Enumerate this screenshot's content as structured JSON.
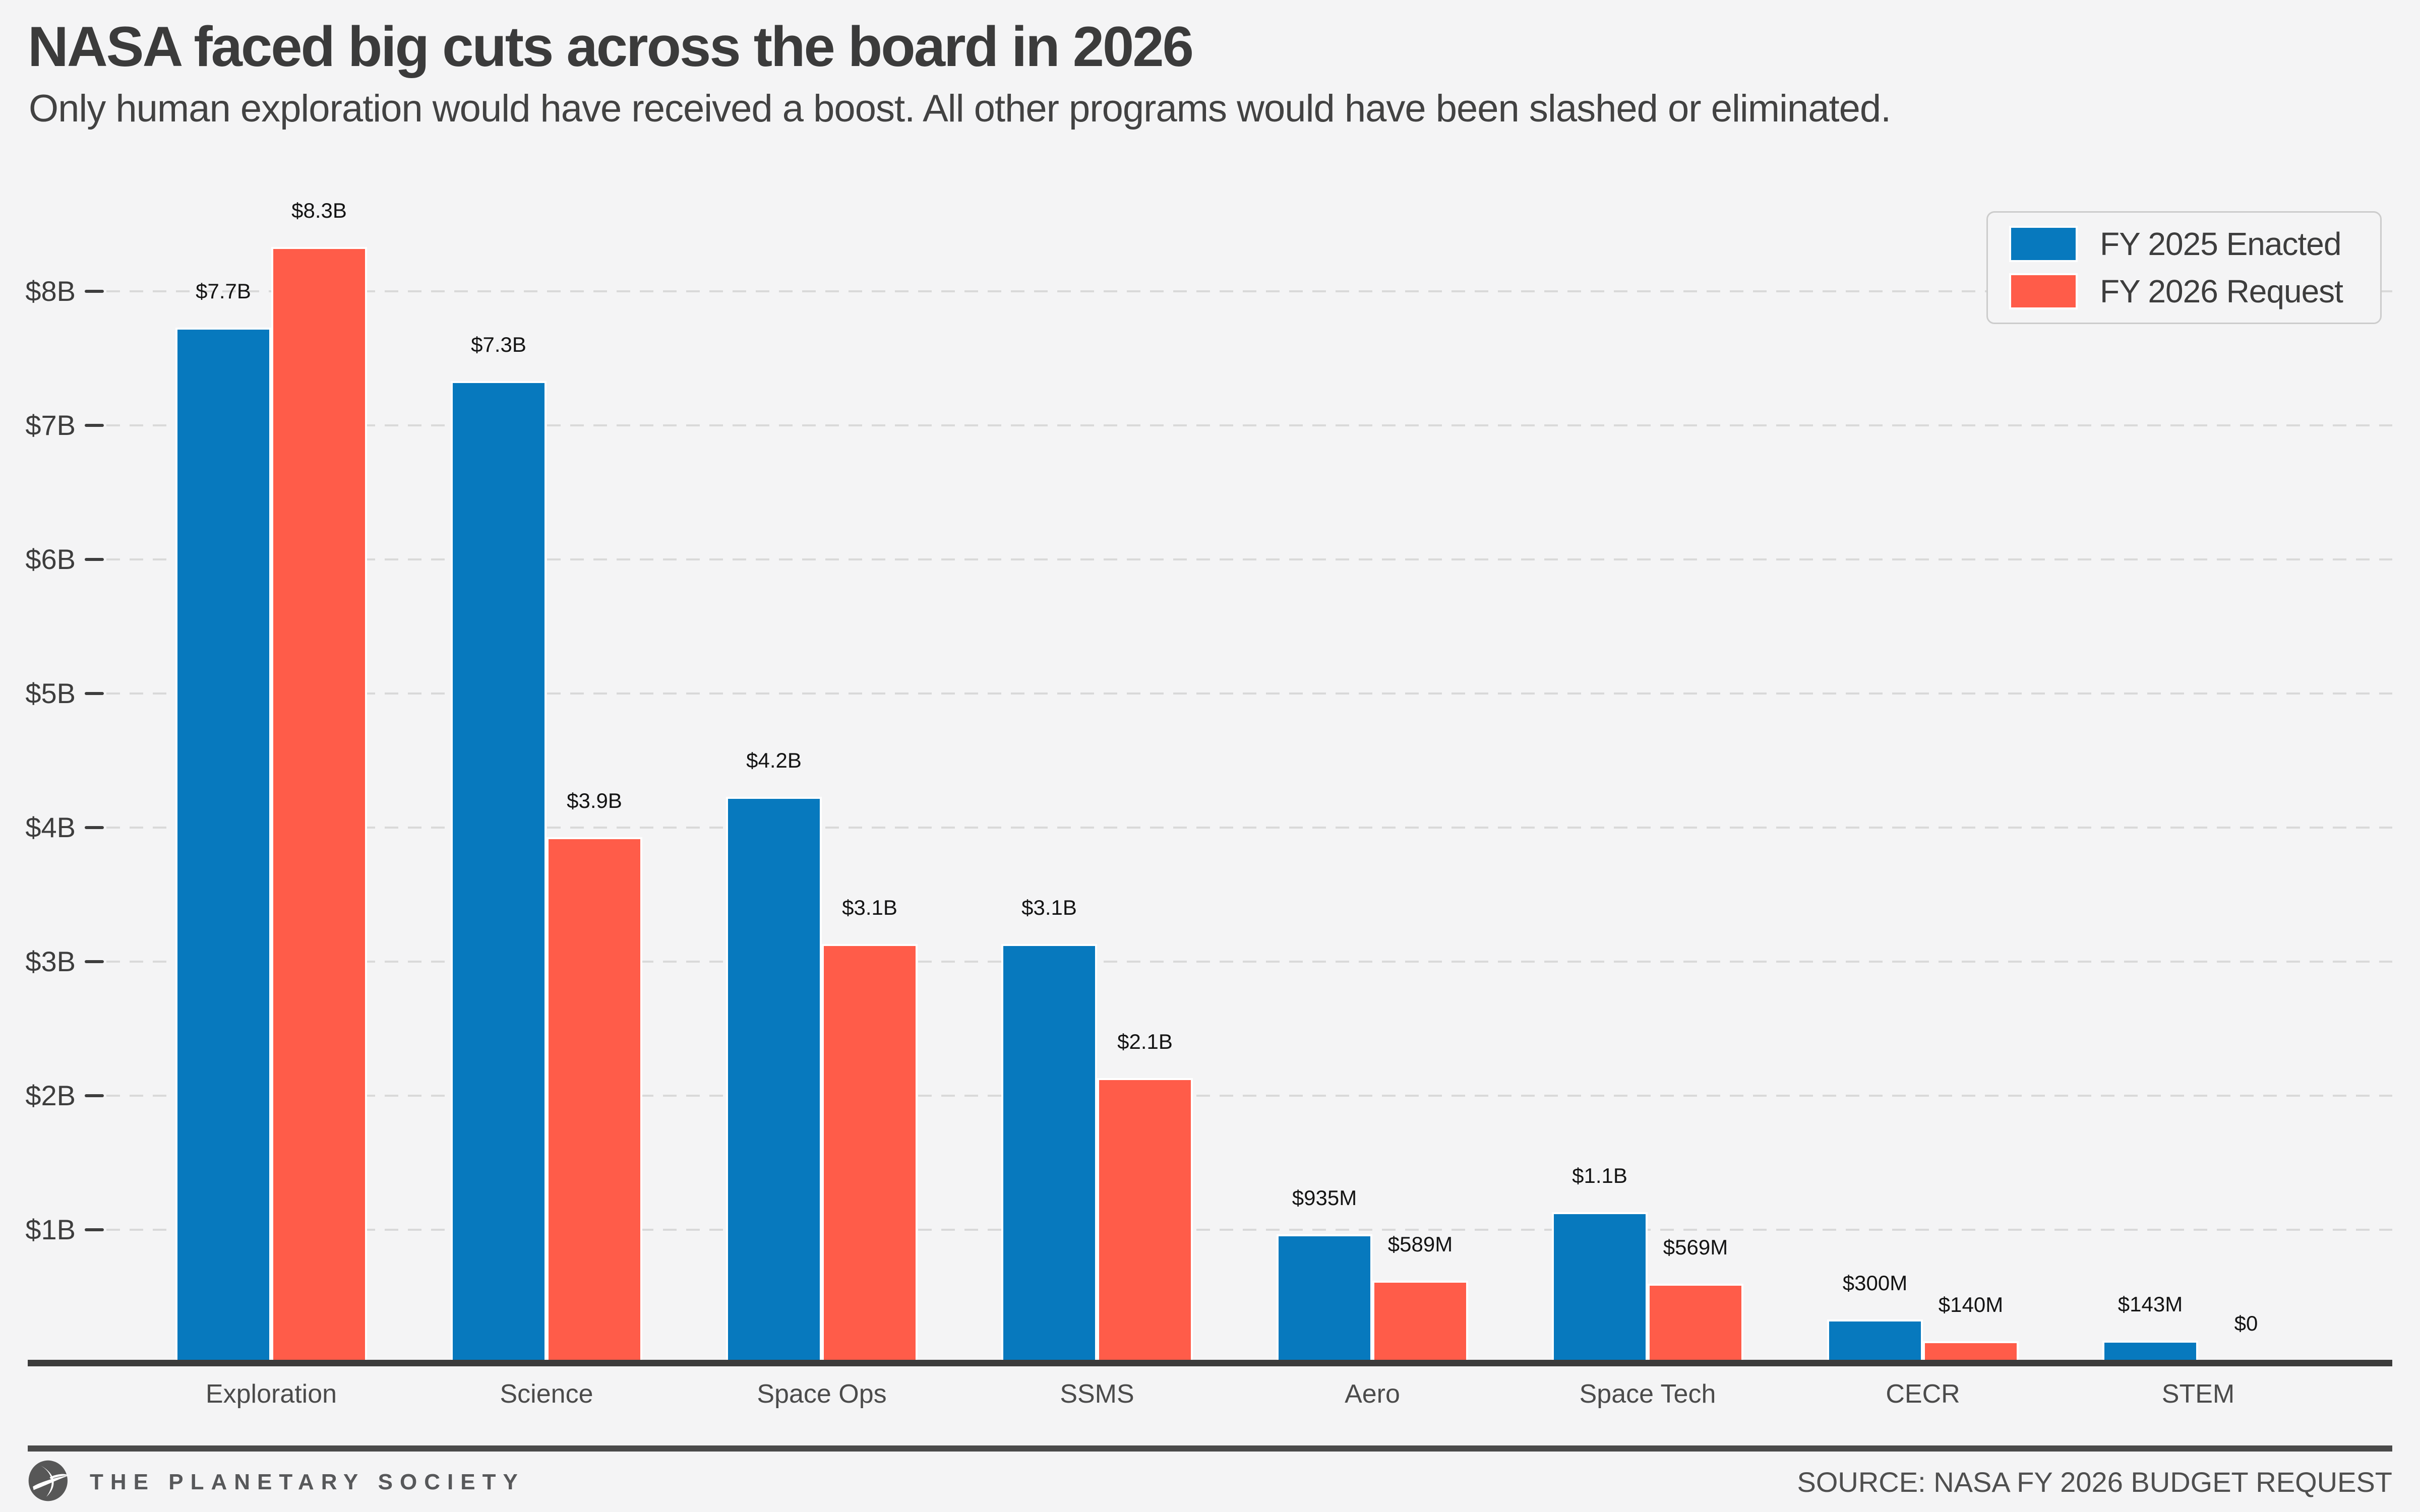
{
  "header": {
    "title": "NASA faced big cuts across the board in 2026",
    "subtitle": "Only human exploration would have received a boost. All other programs would have been slashed or eliminated."
  },
  "legend": {
    "items": [
      {
        "label": "FY 2025 Enacted",
        "color": "#0779be"
      },
      {
        "label": "FY 2026 Request",
        "color": "#ff5c49"
      }
    ]
  },
  "footer": {
    "brand": "THE PLANETARY SOCIETY",
    "source": "SOURCE: NASA FY 2026 BUDGET REQUEST",
    "logo_icon": "planetary-society-orbit-sail",
    "text_color": "#57585a"
  },
  "colors": {
    "background": "#f4f4f5",
    "fy2025_blue": "#0779be",
    "fy2026_red": "#ff5c49",
    "gridline": "#d9d9d9",
    "axis": "#3b3b3b",
    "text": "#3d3d3d"
  },
  "chart_data": {
    "type": "bar",
    "title": "NASA faced big cuts across the board in 2026",
    "subtitle": "Only human exploration would have received a boost. All other programs would have been slashed or eliminated.",
    "categories": [
      "Exploration",
      "Science",
      "Space Ops",
      "SSMS",
      "Aero",
      "Space Tech",
      "CECR",
      "STEM"
    ],
    "series": [
      {
        "name": "FY 2025 Enacted",
        "color": "#0779be",
        "values_billions": [
          7.7,
          7.3,
          4.2,
          3.1,
          0.935,
          1.1,
          0.3,
          0.143
        ],
        "labels": [
          "$7.7B",
          "$7.3B",
          "$4.2B",
          "$3.1B",
          "$935M",
          "$1.1B",
          "$300M",
          "$143M"
        ]
      },
      {
        "name": "FY 2026 Request",
        "color": "#ff5c49",
        "values_billions": [
          8.3,
          3.9,
          3.1,
          2.1,
          0.589,
          0.569,
          0.14,
          0
        ],
        "labels": [
          "$8.3B",
          "$3.9B",
          "$3.1B",
          "$2.1B",
          "$589M",
          "$569M",
          "$140M",
          "$0"
        ]
      }
    ],
    "xlabel": "",
    "ylabel": "",
    "y_ticks": [
      {
        "label": "$1B",
        "value": 1
      },
      {
        "label": "$2B",
        "value": 2
      },
      {
        "label": "$3B",
        "value": 3
      },
      {
        "label": "$4B",
        "value": 4
      },
      {
        "label": "$5B",
        "value": 5
      },
      {
        "label": "$6B",
        "value": 6
      },
      {
        "label": "$7B",
        "value": 7
      },
      {
        "label": "$8B",
        "value": 8
      }
    ],
    "ylim": [
      0,
      8.6
    ],
    "grid": "horizontal-dashed",
    "legend_position": "top-right",
    "bar_value_labels": true
  }
}
